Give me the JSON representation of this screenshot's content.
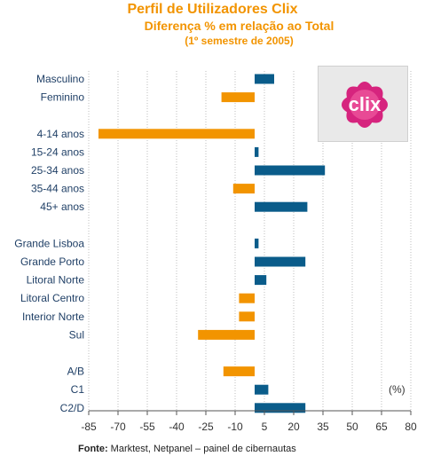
{
  "title": "Perfil de Utilizadores Clix",
  "subtitle": "Diferença % em relação ao Total",
  "period": "(1º semestre de 2005)",
  "unit_label": "(%)",
  "source_label": "Fonte:",
  "source_text": "Marktest, Netpanel – painel de cibernautas",
  "logo_text": "clix",
  "colors": {
    "positive": "#0a5c8a",
    "negative": "#f29400",
    "title": "#f29400",
    "axis": "#555555"
  },
  "chart_data": {
    "type": "bar",
    "orientation": "horizontal",
    "xlim": [
      -85,
      80
    ],
    "xticks": [
      -85,
      -70,
      -55,
      -40,
      -25,
      -10,
      5,
      20,
      35,
      50,
      65,
      80
    ],
    "grid": true,
    "categories": [
      "Masculino",
      "Feminino",
      "",
      "4-14 anos",
      "15-24 anos",
      "25-34 anos",
      "35-44 anos",
      "45+ anos",
      "",
      "Grande Lisboa",
      "Grande Porto",
      "Litoral Norte",
      "Litoral Centro",
      "Interior Norte",
      "Sul",
      "",
      "A/B",
      "C1",
      "C2/D"
    ],
    "values": [
      10,
      -17,
      null,
      -80,
      2,
      36,
      -11,
      27,
      null,
      2,
      26,
      6,
      -8,
      -8,
      -29,
      null,
      -16,
      7,
      26
    ]
  }
}
